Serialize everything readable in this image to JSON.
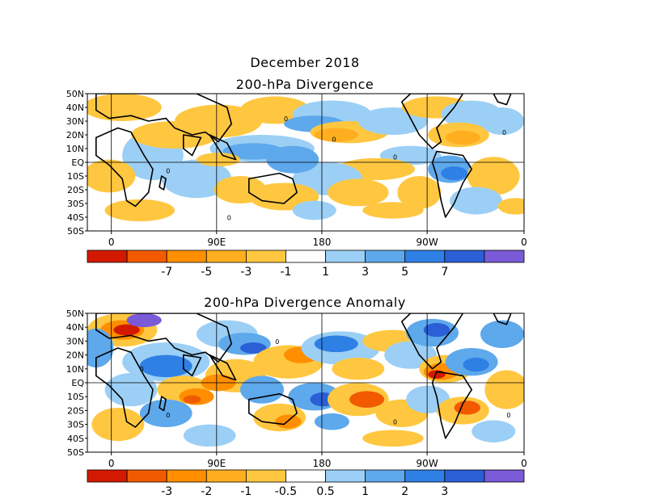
{
  "header": {
    "month_title": "December 2018",
    "panel1_title": "200-hPa Divergence",
    "panel2_title": "200-hPa Divergence Anomaly"
  },
  "latitude_labels": [
    "50N",
    "40N",
    "30N",
    "20N",
    "10N",
    "EQ",
    "10S",
    "20S",
    "30S",
    "40S",
    "50S"
  ],
  "longitude_labels": [
    "0",
    "90E",
    "180",
    "90W",
    "0"
  ],
  "panel1": {
    "contour_zero_label": "0",
    "colorbar": {
      "colors": [
        "#d31a00",
        "#f25a00",
        "#ff8f00",
        "#ffae1f",
        "#ffc740",
        "#ffffff",
        "#9ccff5",
        "#5ea8ec",
        "#2f80e4",
        "#2a5fd6",
        "#7a5ad6"
      ],
      "labels": [
        "-7",
        "-5",
        "-3",
        "-1",
        "1",
        "3",
        "5",
        "7"
      ]
    }
  },
  "panel2": {
    "contour_zero_label": "0",
    "colorbar": {
      "colors": [
        "#d31a00",
        "#f25a00",
        "#ff8f00",
        "#ffae1f",
        "#ffc740",
        "#ffffff",
        "#9ccff5",
        "#5ea8ec",
        "#2f80e4",
        "#2a5fd6",
        "#7a5ad6"
      ],
      "labels": [
        "-3",
        "-2",
        "-1",
        "-0.5",
        "0.5",
        "1",
        "2",
        "3"
      ]
    }
  }
}
